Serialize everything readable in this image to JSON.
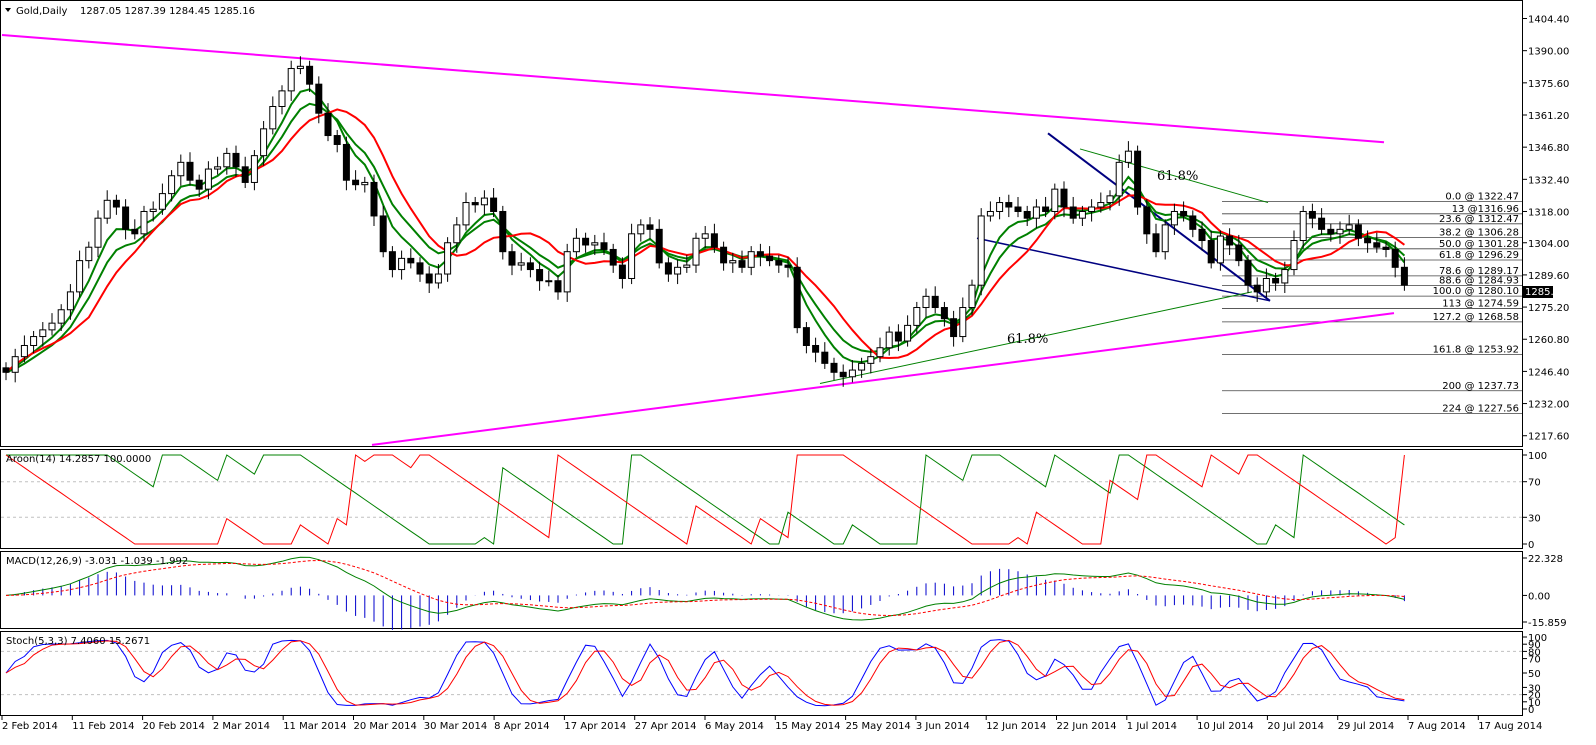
{
  "header": {
    "symbol": "Gold,Daily",
    "ohlc": "1287.05 1287.39 1284.45 1285.16"
  },
  "current_price": "1285.16",
  "colors": {
    "candle_fill": "#000000",
    "magenta_trend": "#ff00ff",
    "blue_wedge": "#000080",
    "green_line": "#008000",
    "red_line": "#ff0000",
    "highlight": "#ffff00",
    "macd_hist": "#0000cc",
    "grid": "#c0c0c0"
  },
  "chart_data": [
    {
      "type": "candlestick",
      "name": "main",
      "y_ticks": [
        "1404.40",
        "1390.00",
        "1375.60",
        "1361.20",
        "1346.80",
        "1332.40",
        "1318.00",
        "1304.00",
        "1289.60",
        "1275.20",
        "1260.80",
        "1246.40",
        "1232.00",
        "1217.60"
      ],
      "ylim": [
        1213,
        1410
      ],
      "x_ticks": [
        "2 Feb 2014",
        "11 Feb 2014",
        "20 Feb 2014",
        "2 Mar 2014",
        "11 Mar 2014",
        "20 Mar 2014",
        "30 Mar 2014",
        "8 Apr 2014",
        "17 Apr 2014",
        "27 Apr 2014",
        "6 May 2014",
        "15 May 2014",
        "25 May 2014",
        "3 Jun 2014",
        "12 Jun 2014",
        "22 Jun 2014",
        "1 Jul 2014",
        "10 Jul 2014",
        "20 Jul 2014",
        "29 Jul 2014",
        "7 Aug 2014",
        "17 Aug 2014"
      ],
      "close": [
        1246,
        1253,
        1258,
        1262,
        1265,
        1268,
        1274,
        1282,
        1296,
        1302,
        1315,
        1323,
        1320,
        1310,
        1308,
        1318,
        1319,
        1326,
        1334,
        1340,
        1332,
        1328,
        1337,
        1338,
        1344,
        1338,
        1331,
        1343,
        1355,
        1365,
        1372,
        1382,
        1383,
        1375,
        1362,
        1352,
        1348,
        1332,
        1330,
        1331,
        1316,
        1300,
        1292,
        1297,
        1295,
        1290,
        1286,
        1290,
        1304,
        1312,
        1322,
        1321,
        1324,
        1318,
        1300,
        1294,
        1295,
        1292,
        1287,
        1287,
        1282,
        1300,
        1306,
        1303,
        1304,
        1301,
        1294,
        1288,
        1308,
        1312,
        1310,
        1295,
        1290,
        1293,
        1294,
        1306,
        1308,
        1302,
        1295,
        1296,
        1293,
        1300,
        1298,
        1296,
        1294,
        1293,
        1266,
        1258,
        1255,
        1250,
        1246,
        1244,
        1247,
        1250,
        1253,
        1257,
        1264,
        1260,
        1267,
        1275,
        1280,
        1275,
        1270,
        1262,
        1275,
        1285,
        1316,
        1318,
        1322,
        1320,
        1318,
        1315,
        1320,
        1318,
        1328,
        1320,
        1315,
        1318,
        1320,
        1322,
        1325,
        1340,
        1345,
        1320,
        1308,
        1300,
        1312,
        1318,
        1316,
        1310,
        1305,
        1295,
        1307,
        1303,
        1296,
        1285,
        1282,
        1288,
        1286,
        1292,
        1305,
        1318,
        1315,
        1310,
        1308,
        1310,
        1312,
        1306,
        1304,
        1302,
        1301,
        1293,
        1285
      ],
      "fib_levels": [
        "0.0 @ 1322.47",
        "13 @1316.96",
        "23.6 @ 1312.47",
        "38.2 @ 1306.28",
        "50.0 @ 1301.28",
        "61.8 @ 1296.29",
        "78.6 @ 1289.17",
        "88.6 @ 1284.93",
        "100.0 @ 1280.10",
        "113 @ 1274.59",
        "127.2 @ 1268.58",
        "161.8 @ 1253.92",
        "200 @ 1237.73",
        "224 @ 1227.56"
      ],
      "fib_values": [
        1322.47,
        1316.96,
        1312.47,
        1306.28,
        1301.28,
        1296.29,
        1289.17,
        1284.93,
        1280.1,
        1274.59,
        1268.58,
        1253.92,
        1237.73,
        1227.56
      ],
      "annotations": [
        "61.8%",
        "61.8%"
      ]
    },
    {
      "type": "line",
      "name": "Aroon(14)",
      "label": "Aroon(14) 14.2857 100.0000",
      "y_ticks": [
        "100",
        "70",
        "30",
        "0"
      ],
      "ylim": [
        0,
        100
      ]
    },
    {
      "type": "line",
      "name": "MACD(12,26,9)",
      "label": "MACD(12,26,9) -3.031 -1.039 -1.992",
      "y_ticks": [
        "22.328",
        "0.00",
        "-15.859"
      ],
      "ylim": [
        -15.859,
        22.328
      ]
    },
    {
      "type": "line",
      "name": "Stoch(5,3,3)",
      "label": "Stoch(5,3,3) 7.4060 15.2671",
      "y_ticks": [
        "100",
        "90",
        "80",
        "70",
        "50",
        "30",
        "20",
        "10",
        "0"
      ],
      "ylim": [
        0,
        100
      ]
    }
  ]
}
